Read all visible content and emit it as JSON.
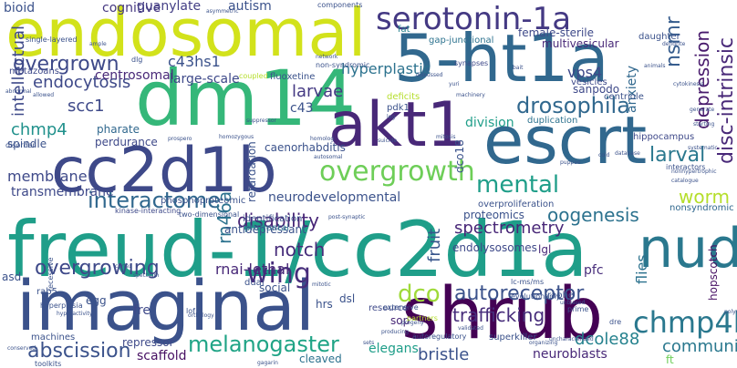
{
  "words": [
    {
      "text": "freud-1/cc2d1a",
      "color": "#1f9e89"
    },
    {
      "text": "imaginal",
      "color": "#3b528b"
    },
    {
      "text": "shrub",
      "color": "#440154"
    },
    {
      "text": "dm14",
      "color": "#35b779"
    },
    {
      "text": "endosomal",
      "color": "#d2e21b"
    },
    {
      "text": "5-ht1a",
      "color": "#31688e"
    },
    {
      "text": "cc2d1b",
      "color": "#3e4989"
    },
    {
      "text": "escrt",
      "color": "#31688e"
    },
    {
      "text": "akt1",
      "color": "#482878"
    },
    {
      "text": "nudr",
      "color": "#2a788e"
    },
    {
      "text": "serotonin-1a",
      "color": "#443983"
    },
    {
      "text": "overgrowth",
      "color": "#6ece58"
    },
    {
      "text": "chmp4b",
      "color": "#2a788e"
    },
    {
      "text": "drosophila",
      "color": "#31688e"
    },
    {
      "text": "interactome",
      "color": "#31688e"
    },
    {
      "text": "overgrowing",
      "color": "#3e4989"
    },
    {
      "text": "mental",
      "color": "#1f9e89"
    },
    {
      "text": "wing",
      "color": "#472d7b"
    },
    {
      "text": "autoreceptor",
      "color": "#3b528b"
    },
    {
      "text": "melanogaster",
      "color": "#20a486"
    },
    {
      "text": "abscission",
      "color": "#3b528b"
    },
    {
      "text": "trafficking",
      "color": "#472d7b"
    },
    {
      "text": "dco",
      "color": "#9fda3a"
    },
    {
      "text": "overgrown",
      "color": "#3e4989"
    },
    {
      "text": "larval",
      "color": "#2a788e"
    },
    {
      "text": "notch",
      "color": "#472d7b"
    },
    {
      "text": "disc-intrinsic",
      "color": "#482878"
    },
    {
      "text": "depression",
      "color": "#481a6c"
    },
    {
      "text": "nsmr",
      "color": "#365c8d"
    },
    {
      "text": "rn46a",
      "color": "#482677"
    },
    {
      "text": "fruit",
      "color": "#2c728e"
    },
    {
      "text": "flies",
      "color": "#b5de2b"
    },
    {
      "text": "anxiety",
      "color": "#2a788e"
    },
    {
      "text": "intellectual",
      "color": "#3b528b"
    },
    {
      "text": "dco18",
      "color": "#26828e"
    },
    {
      "text": "hopscotch",
      "color": "#2c728e"
    },
    {
      "text": "retardation",
      "color": "#39568c"
    },
    {
      "text": "recessive",
      "color": "#482677"
    },
    {
      "text": "communication",
      "color": "#3b528b"
    },
    {
      "text": "bristle",
      "color": "#3e4989"
    },
    {
      "text": "dcole88",
      "color": "#443983"
    },
    {
      "text": "spectrometry",
      "color": "#2c728e"
    },
    {
      "text": "c43hs1",
      "color": "#21918c"
    },
    {
      "text": "vps4",
      "color": "#3e4989"
    },
    {
      "text": "larvae",
      "color": "#3e4989"
    },
    {
      "text": "chmp4",
      "color": "#2c728e"
    },
    {
      "text": "scc1",
      "color": "#453781"
    },
    {
      "text": "endocytosis",
      "color": "#433e85"
    },
    {
      "text": "hyperplastic",
      "color": "#3b528b"
    },
    {
      "text": "disability",
      "color": "#3b528b"
    },
    {
      "text": "oogenesis",
      "color": "#3b528b"
    },
    {
      "text": "worm",
      "color": "#1f9e89"
    },
    {
      "text": "cognitive",
      "color": "#3b528b"
    },
    {
      "text": "guanylate",
      "color": "#3b528b"
    },
    {
      "text": "autism",
      "color": "#3e4989"
    },
    {
      "text": "bioid",
      "color": "#3e4989"
    },
    {
      "text": "c43",
      "color": "#482878"
    },
    {
      "text": "division",
      "color": "#472d7b"
    },
    {
      "text": "neurodevelopmental",
      "color": "#471063"
    },
    {
      "text": "proteomics",
      "color": "#1f9e89"
    },
    {
      "text": "transmembrane",
      "color": "#482878"
    },
    {
      "text": "membrane",
      "color": "#6ece58"
    },
    {
      "text": "rnai-lethal",
      "color": "#2c728e"
    },
    {
      "text": "pfc",
      "color": "#3e4989"
    },
    {
      "text": "scaffold",
      "color": "#3e4989"
    },
    {
      "text": "elegans",
      "color": "#482878"
    },
    {
      "text": "neuroblasts",
      "color": "#3b528b"
    },
    {
      "text": "ft",
      "color": "#31688e"
    },
    {
      "text": "cleaved",
      "color": "#3e4989"
    },
    {
      "text": "large-scale",
      "color": "#31688e"
    },
    {
      "text": "centrosomal",
      "color": "#3e4989"
    },
    {
      "text": "spindle",
      "color": "#482878"
    },
    {
      "text": "pharate",
      "color": "#3e4989"
    },
    {
      "text": "perdurance",
      "color": "#471164"
    },
    {
      "text": "female-sterile",
      "color": "#31688e"
    },
    {
      "text": "multivesicular",
      "color": "#31688e"
    },
    {
      "text": "sanpodo",
      "color": "#3b528b"
    },
    {
      "text": "nonsyndromic",
      "color": "#3b528b"
    },
    {
      "text": "caenorhabditis",
      "color": "#2c728e"
    },
    {
      "text": "duplication",
      "color": "#3e4989"
    },
    {
      "text": "metazoans",
      "color": "#3b528b"
    },
    {
      "text": "pdk1",
      "color": "#3b528b"
    },
    {
      "text": "egg",
      "color": "#3b528b"
    },
    {
      "text": "antidepressant",
      "color": "#2c728e"
    },
    {
      "text": "prefrontal",
      "color": "#3e4989"
    },
    {
      "text": "fre",
      "color": "#482878"
    },
    {
      "text": "lgl",
      "color": "#3b528b"
    },
    {
      "text": "rab5",
      "color": "#3b528b"
    },
    {
      "text": "dsl",
      "color": "#482878"
    },
    {
      "text": "sop",
      "color": "#3b528b"
    },
    {
      "text": "raphe",
      "color": "#3e4989"
    },
    {
      "text": "endolysosomes",
      "color": "#3b528b"
    },
    {
      "text": "asd",
      "color": "#3b528b"
    },
    {
      "text": "social",
      "color": "#3b528b"
    },
    {
      "text": "hrs",
      "color": "#3e4989"
    },
    {
      "text": "repressor",
      "color": "#3b528b"
    },
    {
      "text": "dual",
      "color": "#3e4989"
    },
    {
      "text": "resource",
      "color": "#b5de2b"
    },
    {
      "text": "deficits",
      "color": "#3b528b"
    },
    {
      "text": "dlg",
      "color": "#3e4989"
    },
    {
      "text": "vesicles",
      "color": "#2c728e"
    },
    {
      "text": "gap-junctional",
      "color": "#26828e"
    },
    {
      "text": "fat",
      "color": "#3b528b"
    },
    {
      "text": "daughter",
      "color": "#3b528b"
    },
    {
      "text": "centriole",
      "color": "#3e4989"
    },
    {
      "text": "hippocampus",
      "color": "#3b528b"
    },
    {
      "text": "phosphoproteomic",
      "color": "#3b528b"
    },
    {
      "text": "identification",
      "color": "#3e4989"
    },
    {
      "text": "kinase-interacting",
      "color": "#3b528b"
    },
    {
      "text": "two-dimensional",
      "color": "#3b528b"
    },
    {
      "text": "lc-ms/ms",
      "color": "#3b528b"
    },
    {
      "text": "interactors",
      "color": "#3b528b"
    },
    {
      "text": "overproliferation",
      "color": "#3b528b"
    },
    {
      "text": "fluoxetine",
      "color": "#b5de2b"
    },
    {
      "text": "coupled",
      "color": "#3b528b"
    },
    {
      "text": "non-syndromic",
      "color": "#3e4989"
    },
    {
      "text": "synapses",
      "color": "#3b528b"
    },
    {
      "text": "single-layered",
      "color": "#3b528b"
    },
    {
      "text": "allowed",
      "color": "#3b528b"
    },
    {
      "text": "abnormal",
      "color": "#3b528b"
    },
    {
      "text": "asymmetric",
      "color": "#3b528b"
    },
    {
      "text": "components",
      "color": "#b5de2b"
    },
    {
      "text": "partners",
      "color": "#3b528b"
    },
    {
      "text": "evolutionarily",
      "color": "#3b528b"
    },
    {
      "text": "autoregulatory",
      "color": "#3b528b"
    },
    {
      "text": "prime",
      "color": "#3b528b"
    },
    {
      "text": "superkiller",
      "color": "#3b528b"
    },
    {
      "text": "uncharacterized",
      "color": "#3b528b"
    },
    {
      "text": "machines",
      "color": "#3b528b"
    },
    {
      "text": "toolkits",
      "color": "#3b528b"
    },
    {
      "text": "hyperplasia",
      "color": "#3b528b"
    },
    {
      "text": "hyperactivity",
      "color": "#3b528b"
    },
    {
      "text": "spectrum",
      "color": "#3b528b"
    },
    {
      "text": "cortex",
      "color": "#3b528b"
    },
    {
      "text": "lof",
      "color": "#3b528b"
    },
    {
      "text": "gagarin",
      "color": "#3b528b"
    },
    {
      "text": "autosomal",
      "color": "#3b528b"
    },
    {
      "text": "catalogue",
      "color": "#3b528b"
    },
    {
      "text": "nonhypertrophic",
      "color": "#3b528b"
    },
    {
      "text": "homozygous",
      "color": "#3b528b"
    },
    {
      "text": "prospero",
      "color": "#3b528b"
    },
    {
      "text": "disorder",
      "color": "#3b528b"
    },
    {
      "text": "organizing",
      "color": "#3b528b"
    },
    {
      "text": "polymerization",
      "color": "#3b528b"
    },
    {
      "text": "conserved",
      "color": "#3b528b"
    },
    {
      "text": "mitotic",
      "color": "#3b528b"
    },
    {
      "text": "extensive",
      "color": "#3b528b"
    },
    {
      "text": "progeny",
      "color": "#3b528b"
    },
    {
      "text": "validated",
      "color": "#3b528b"
    },
    {
      "text": "unbiased",
      "color": "#3b528b"
    },
    {
      "text": "sets",
      "color": "#3b528b"
    },
    {
      "text": "post-synaptic",
      "color": "#3b528b"
    },
    {
      "text": "ample",
      "color": "#3b528b"
    },
    {
      "text": "network",
      "color": "#3b528b"
    },
    {
      "text": "yuri",
      "color": "#3b528b"
    },
    {
      "text": "leg",
      "color": "#3b528b"
    },
    {
      "text": "machinery",
      "color": "#3b528b"
    },
    {
      "text": "suicide",
      "color": "#3b528b"
    },
    {
      "text": "homolog",
      "color": "#3b528b"
    },
    {
      "text": "suppressor",
      "color": "#3b528b"
    },
    {
      "text": "starting",
      "color": "#3b528b"
    },
    {
      "text": "systematic",
      "color": "#3b528b"
    },
    {
      "text": "discussed",
      "color": "#3b528b"
    },
    {
      "text": "generate",
      "color": "#3b528b"
    },
    {
      "text": "animals",
      "color": "#3b528b"
    },
    {
      "text": "bait",
      "color": "#3b528b"
    },
    {
      "text": "database",
      "color": "#3b528b"
    },
    {
      "text": "cold",
      "color": "#3b528b"
    },
    {
      "text": "puppae",
      "color": "#3b528b"
    },
    {
      "text": "dendrite",
      "color": "#3b528b"
    },
    {
      "text": "orthology",
      "color": "#3b528b"
    },
    {
      "text": "cytokinesis",
      "color": "#3b528b"
    },
    {
      "text": "mitosis",
      "color": "#3b528b"
    },
    {
      "text": "producing",
      "color": "#3b528b"
    },
    {
      "text": "dre",
      "color": "#3b528b"
    }
  ]
}
